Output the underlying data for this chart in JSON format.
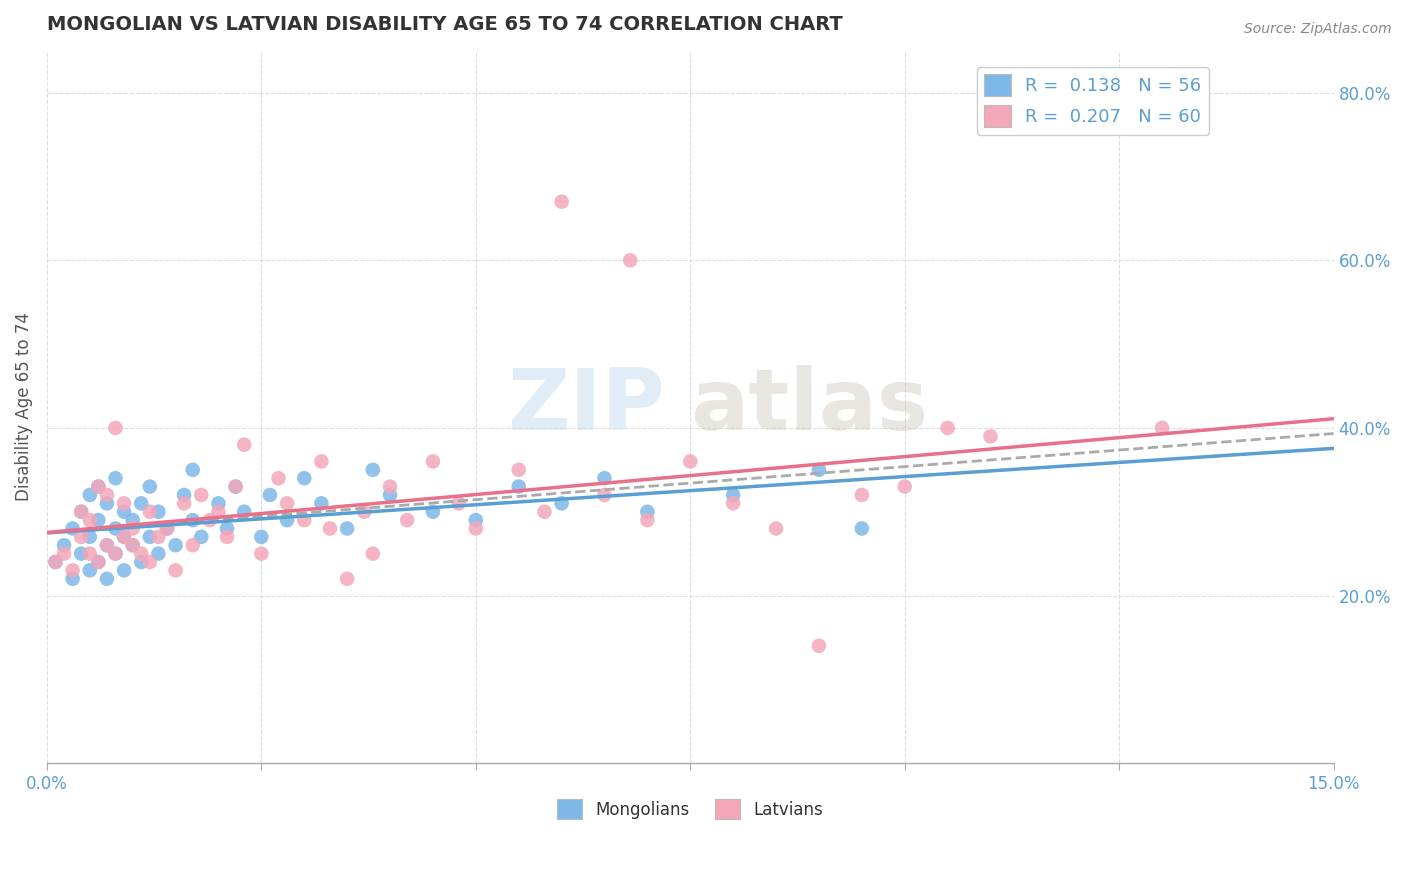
{
  "title": "MONGOLIAN VS LATVIAN DISABILITY AGE 65 TO 74 CORRELATION CHART",
  "source_text": "Source: ZipAtlas.com",
  "ylabel": "Disability Age 65 to 74",
  "xlim": [
    0.0,
    0.15
  ],
  "ylim": [
    0.0,
    0.85
  ],
  "xtick_positions": [
    0.0,
    0.025,
    0.05,
    0.075,
    0.1,
    0.125,
    0.15
  ],
  "xticklabels": [
    "0.0%",
    "",
    "",
    "",
    "",
    "",
    "15.0%"
  ],
  "yticks_right": [
    0.2,
    0.4,
    0.6,
    0.8
  ],
  "ytick_labels_right": [
    "20.0%",
    "40.0%",
    "60.0%",
    "80.0%"
  ],
  "yticks_grid": [
    0.2,
    0.4,
    0.6,
    0.8
  ],
  "legend_r1": "R =  0.138   N = 56",
  "legend_r2": "R =  0.207   N = 60",
  "mongolian_color": "#7eb8e8",
  "latvian_color": "#f4a7b9",
  "mongolian_line_color": "#5a9fd4",
  "latvian_line_color": "#e8708a",
  "dashed_line_color": "#aaaaaa",
  "background_color": "#ffffff",
  "grid_color": "#dddddd",
  "watermark_zip": "ZIP",
  "watermark_atlas": "atlas",
  "label_color": "#5a9fd4",
  "title_color": "#333333",
  "mongolian_scatter_x": [
    0.001,
    0.002,
    0.003,
    0.003,
    0.004,
    0.004,
    0.005,
    0.005,
    0.005,
    0.006,
    0.006,
    0.006,
    0.007,
    0.007,
    0.007,
    0.008,
    0.008,
    0.008,
    0.009,
    0.009,
    0.009,
    0.01,
    0.01,
    0.011,
    0.011,
    0.012,
    0.012,
    0.013,
    0.013,
    0.014,
    0.015,
    0.016,
    0.017,
    0.017,
    0.018,
    0.02,
    0.021,
    0.022,
    0.023,
    0.025,
    0.026,
    0.028,
    0.03,
    0.032,
    0.035,
    0.038,
    0.04,
    0.045,
    0.05,
    0.055,
    0.06,
    0.065,
    0.07,
    0.08,
    0.09,
    0.095
  ],
  "mongolian_scatter_y": [
    0.24,
    0.26,
    0.22,
    0.28,
    0.25,
    0.3,
    0.23,
    0.27,
    0.32,
    0.24,
    0.29,
    0.33,
    0.22,
    0.26,
    0.31,
    0.25,
    0.28,
    0.34,
    0.23,
    0.27,
    0.3,
    0.26,
    0.29,
    0.24,
    0.31,
    0.27,
    0.33,
    0.25,
    0.3,
    0.28,
    0.26,
    0.32,
    0.29,
    0.35,
    0.27,
    0.31,
    0.28,
    0.33,
    0.3,
    0.27,
    0.32,
    0.29,
    0.34,
    0.31,
    0.28,
    0.35,
    0.32,
    0.3,
    0.29,
    0.33,
    0.31,
    0.34,
    0.3,
    0.32,
    0.35,
    0.28
  ],
  "latvian_scatter_x": [
    0.001,
    0.002,
    0.003,
    0.004,
    0.004,
    0.005,
    0.005,
    0.006,
    0.006,
    0.007,
    0.007,
    0.008,
    0.008,
    0.009,
    0.009,
    0.01,
    0.01,
    0.011,
    0.012,
    0.012,
    0.013,
    0.014,
    0.015,
    0.016,
    0.017,
    0.018,
    0.019,
    0.02,
    0.021,
    0.022,
    0.023,
    0.025,
    0.027,
    0.028,
    0.03,
    0.032,
    0.033,
    0.035,
    0.037,
    0.038,
    0.04,
    0.042,
    0.045,
    0.048,
    0.05,
    0.055,
    0.058,
    0.06,
    0.065,
    0.068,
    0.07,
    0.075,
    0.08,
    0.085,
    0.09,
    0.095,
    0.1,
    0.105,
    0.11,
    0.13
  ],
  "latvian_scatter_y": [
    0.24,
    0.25,
    0.23,
    0.27,
    0.3,
    0.25,
    0.29,
    0.24,
    0.33,
    0.26,
    0.32,
    0.25,
    0.4,
    0.27,
    0.31,
    0.26,
    0.28,
    0.25,
    0.3,
    0.24,
    0.27,
    0.28,
    0.23,
    0.31,
    0.26,
    0.32,
    0.29,
    0.3,
    0.27,
    0.33,
    0.38,
    0.25,
    0.34,
    0.31,
    0.29,
    0.36,
    0.28,
    0.22,
    0.3,
    0.25,
    0.33,
    0.29,
    0.36,
    0.31,
    0.28,
    0.35,
    0.3,
    0.67,
    0.32,
    0.6,
    0.29,
    0.36,
    0.31,
    0.28,
    0.14,
    0.32,
    0.33,
    0.4,
    0.39,
    0.4
  ]
}
